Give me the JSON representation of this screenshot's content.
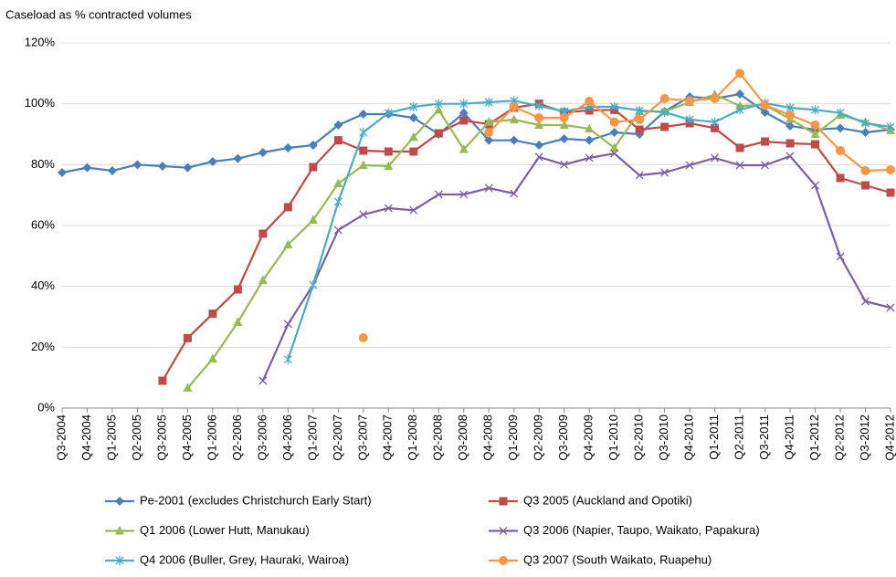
{
  "chart_data": {
    "type": "line",
    "title": "Caseload as % contracted volumes",
    "categories": [
      "Q3-2004",
      "Q4-2004",
      "Q1-2005",
      "Q2-2005",
      "Q3-2005",
      "Q4-2005",
      "Q1-2006",
      "Q2-2006",
      "Q3-2006",
      "Q4-2006",
      "Q1-2007",
      "Q2-2007",
      "Q3-2007",
      "Q4-2007",
      "Q1-2008",
      "Q2-2008",
      "Q3-2008",
      "Q4-2008",
      "Q1-2009",
      "Q2-2009",
      "Q3-2009",
      "Q4-2009",
      "Q1-2010",
      "Q2-2010",
      "Q3-2010",
      "Q4-2010",
      "Q1-2011",
      "Q2-2011",
      "Q3-2011",
      "Q4-2011",
      "Q1-2012",
      "Q2-2012",
      "Q3-2012",
      "Q4-2012"
    ],
    "ylim": [
      0,
      120
    ],
    "yticks": [
      {
        "value": 0,
        "label": "0%"
      },
      {
        "value": 20,
        "label": "20%"
      },
      {
        "value": 40,
        "label": "40%"
      },
      {
        "value": 60,
        "label": "60%"
      },
      {
        "value": 80,
        "label": "80%"
      },
      {
        "value": 100,
        "label": "100%"
      },
      {
        "value": 120,
        "label": "120%"
      }
    ],
    "grid": true,
    "legend": "bottom",
    "series": [
      {
        "name": "Pe-2001 (excludes Christchurch Early Start)",
        "color": "#4a7ebb",
        "marker": "diamond",
        "values": [
          77.4,
          79,
          78,
          80,
          79.5,
          79,
          81,
          82,
          84,
          85.5,
          86.4,
          93,
          96.6,
          96.6,
          95.4,
          90,
          97,
          88,
          88,
          86.4,
          88.5,
          88,
          90.6,
          90,
          97.5,
          102.3,
          101.7,
          103.2,
          97.2,
          92.7,
          91.5,
          92,
          90.6,
          91.5
        ]
      },
      {
        "name": "Q3 2005 (Auckland and Opotiki)",
        "color": "#be4b48",
        "marker": "square",
        "values": [
          null,
          null,
          null,
          null,
          9,
          23,
          31,
          39,
          57.3,
          66,
          79.2,
          88,
          84.6,
          84.3,
          84.3,
          90.3,
          94.5,
          93.3,
          98.7,
          100,
          97.2,
          97.8,
          98,
          91.5,
          92.4,
          93.6,
          92,
          85.5,
          87.6,
          87,
          86.7,
          75.6,
          73.2,
          70.8
        ]
      },
      {
        "name": "Q1 2006 (Lower Hutt, Manukau)",
        "color": "#98b954",
        "marker": "triangle",
        "values": [
          null,
          null,
          null,
          null,
          null,
          6.6,
          16.2,
          28.2,
          42,
          53.7,
          61.8,
          73.8,
          79.8,
          79.5,
          89,
          98,
          85,
          94,
          94.8,
          93,
          93,
          91.8,
          85.5,
          97.5,
          97.5,
          100.5,
          103,
          99.3,
          99.6,
          95,
          90,
          96.3,
          94,
          91.2
        ]
      },
      {
        "name": "Q3 2006 (Napier, Taupo, Waikato, Papakura)",
        "color": "#7d60a0",
        "marker": "x",
        "values": [
          null,
          null,
          null,
          null,
          null,
          null,
          null,
          null,
          9,
          27.6,
          40.5,
          58.5,
          63.6,
          65.7,
          65,
          70.2,
          70.2,
          72.3,
          70.5,
          82.5,
          80,
          82.2,
          83.7,
          76.5,
          77.4,
          79.8,
          82.2,
          79.8,
          79.8,
          82.8,
          73.2,
          49.8,
          35.1,
          33
        ]
      },
      {
        "name": "Q4 2006 (Buller, Grey, Hauraki, Wairoa)",
        "color": "#4bacc6",
        "marker": "asterisk",
        "values": [
          null,
          null,
          null,
          null,
          null,
          null,
          null,
          null,
          null,
          16,
          40.5,
          67.8,
          90.6,
          97,
          99,
          100,
          100,
          100.5,
          101,
          99.3,
          97.5,
          99,
          99,
          97.8,
          97.2,
          94.8,
          94,
          98,
          100.2,
          98.7,
          98,
          97,
          93.6,
          92.4
        ]
      },
      {
        "name": "Q3 2007 (South Waikato, Ruapehu)",
        "color": "#f79646",
        "marker": "circle",
        "values": [
          null,
          null,
          null,
          null,
          null,
          null,
          null,
          null,
          null,
          null,
          null,
          null,
          23.1,
          null,
          null,
          null,
          null,
          90.6,
          99,
          95.4,
          95.4,
          100.8,
          94,
          94.8,
          101.7,
          101,
          101.7,
          110,
          99.6,
          96.3,
          93,
          84.6,
          78,
          78.3
        ]
      }
    ]
  }
}
